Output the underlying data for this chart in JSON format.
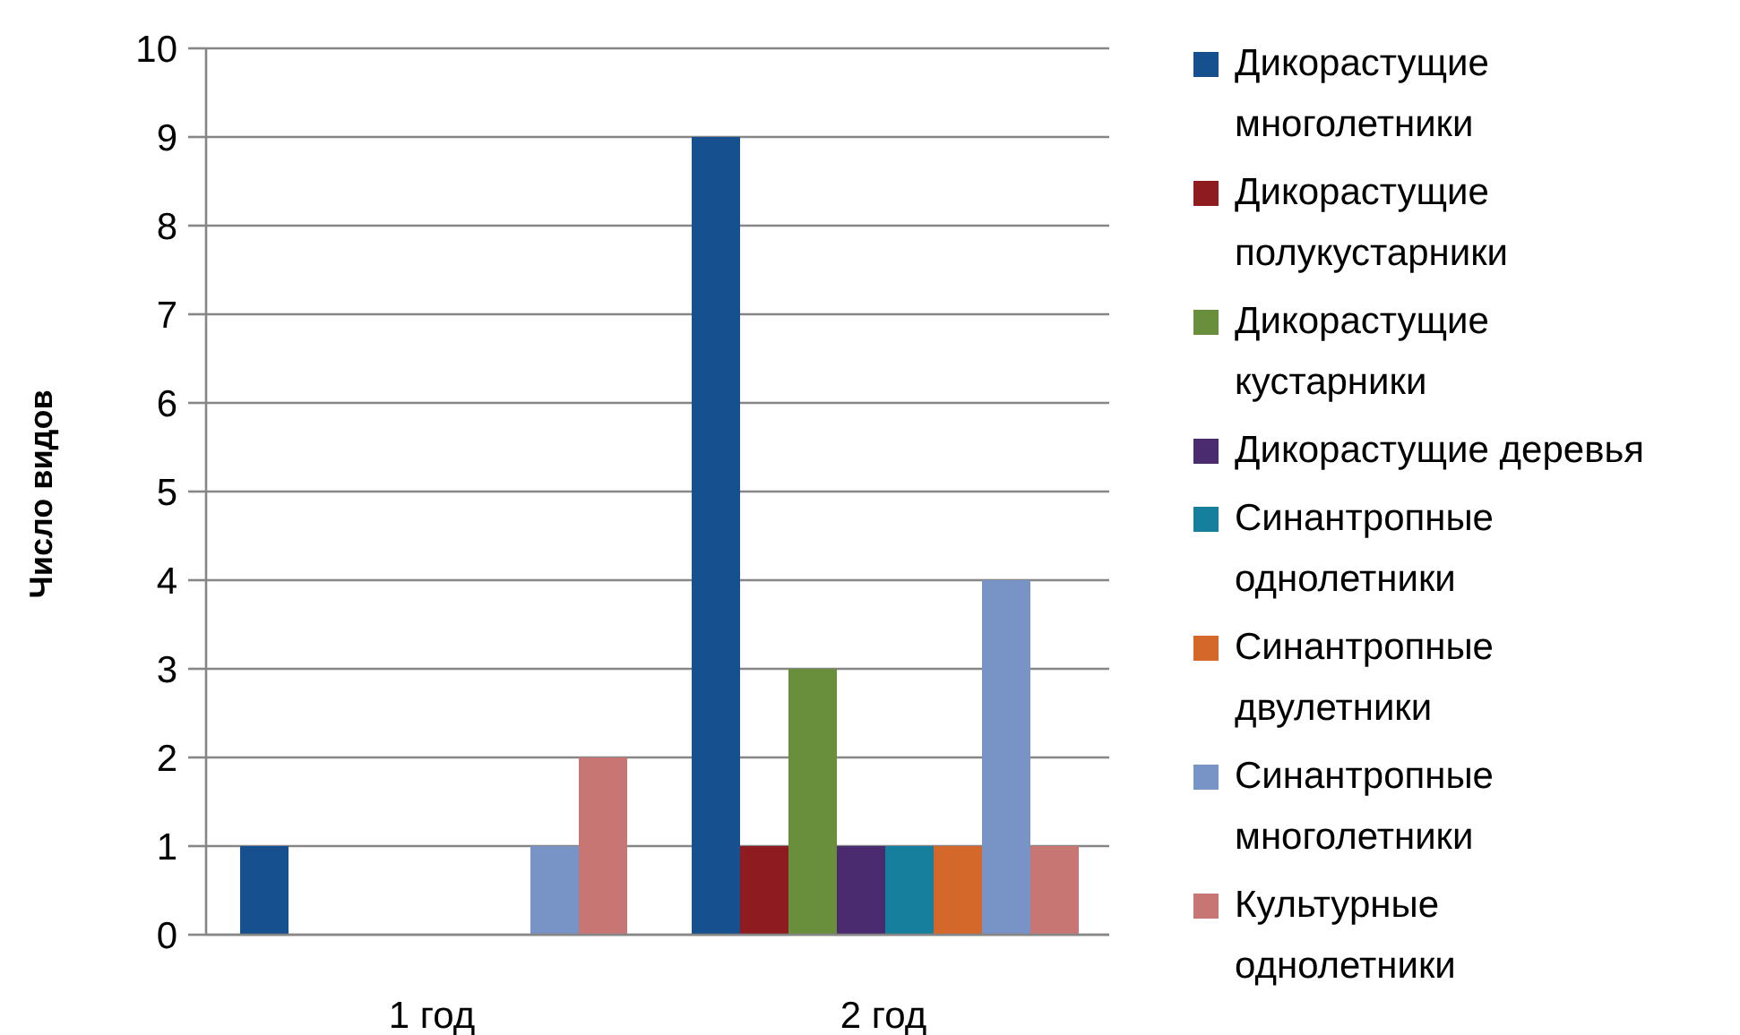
{
  "chart_data": {
    "type": "bar",
    "ylabel": "Число видов",
    "categories": [
      "1 год",
      "2 год"
    ],
    "series": [
      {
        "name": "Дикорастущие многолетники",
        "color": "#17508e",
        "values": [
          1,
          9
        ]
      },
      {
        "name": "Дикорастущие полукустарники",
        "color": "#8e1b20",
        "values": [
          0,
          1
        ]
      },
      {
        "name": "Дикорастущие кустарники",
        "color": "#6a8f3c",
        "values": [
          0,
          3
        ]
      },
      {
        "name": "Дикорастущие деревья",
        "color": "#4b2b70",
        "values": [
          0,
          1
        ]
      },
      {
        "name": "Синантропные однолетники",
        "color": "#167f9d",
        "values": [
          0,
          1
        ]
      },
      {
        "name": "Синантропные двулетники",
        "color": "#d4672a",
        "values": [
          0,
          1
        ]
      },
      {
        "name": "Синантропные многолетники",
        "color": "#7893c6",
        "values": [
          1,
          4
        ]
      },
      {
        "name": "Культурные однолетники",
        "color": "#c87674",
        "values": [
          2,
          1
        ]
      }
    ],
    "ylim": [
      0,
      10
    ],
    "yticks": [
      0,
      1,
      2,
      3,
      4,
      5,
      6,
      7,
      8,
      9,
      10
    ],
    "grid": "y",
    "legend": "right"
  }
}
